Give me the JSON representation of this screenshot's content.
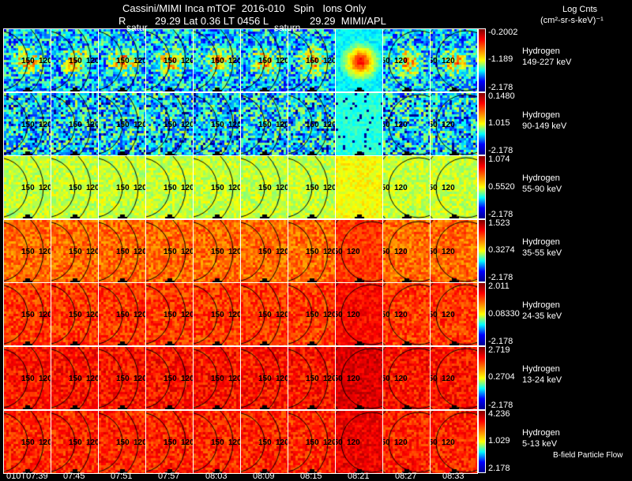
{
  "header": {
    "title": "Cassini/MIMI Inca mTOF  2016-010   Spin   Ions Only",
    "subtitle_r": "R",
    "subtitle": "29.29 Lat 0.36 LT 0456 L",
    "subtitle_l": "29.29  MIMI/APL",
    "saturn_label_1": "satur",
    "saturn_label_2": "saturn",
    "units_line1": "Log Cnts",
    "units_line2": "(cm²-sr-s-keV)⁻¹"
  },
  "chart_data": {
    "type": "heatmap",
    "title": "Cassini/MIMI Inca mTOF 2016-010 Spin Ions Only",
    "columns": [
      "010T07:39",
      "07:45",
      "07:51",
      "07:57",
      "08:03",
      "08:09",
      "08:15",
      "08:21",
      "08:27",
      "08:33"
    ],
    "ring_labels": [
      "150",
      "120"
    ],
    "rows": [
      {
        "species": "Hydrogen",
        "energy": "149-227 keV",
        "cb_max": "-0.2002",
        "cb_mid": "-1.189",
        "cb_min": "-2.178",
        "mean_level": 0.32
      },
      {
        "species": "Hydrogen",
        "energy": "90-149 keV",
        "cb_max": "0.1480",
        "cb_mid": "1.015",
        "cb_min": "-2.178",
        "mean_level": 0.36
      },
      {
        "species": "Hydrogen",
        "energy": "55-90 keV",
        "cb_max": "1.074",
        "cb_mid": "0.5520",
        "cb_min": "-2.178",
        "mean_level": 0.57
      },
      {
        "species": "Hydrogen",
        "energy": "35-55 keV",
        "cb_max": "1.523",
        "cb_mid": "0.3274",
        "cb_min": "-2.178",
        "mean_level": 0.77
      },
      {
        "species": "Hydrogen",
        "energy": "24-35 keV",
        "cb_max": "2.011",
        "cb_mid": "0.08330",
        "cb_min": "-2.178",
        "mean_level": 0.82
      },
      {
        "species": "Hydrogen",
        "energy": "13-24 keV",
        "cb_max": "2.719",
        "cb_mid": "0.2704",
        "cb_min": "-2.178",
        "mean_level": 0.86
      },
      {
        "species": "Hydrogen",
        "energy": "5-13 keV",
        "cb_max": "4.236",
        "cb_mid": "1.029",
        "cb_min": "2.178",
        "mean_level": 0.84
      }
    ],
    "colormap": "jet"
  },
  "footer": {
    "flow_label": "B-field Particle Flow"
  }
}
